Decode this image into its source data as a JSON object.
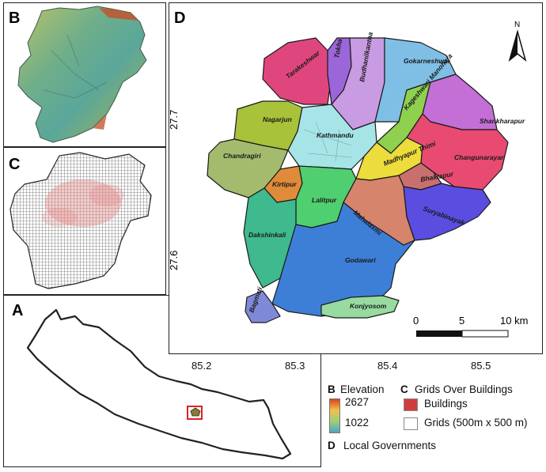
{
  "panels": {
    "b": "B",
    "c": "C",
    "a": "A",
    "d": "D"
  },
  "map_d": {
    "north": "N",
    "lon_ticks": [
      "85.2",
      "85.3",
      "85.4",
      "85.5"
    ],
    "lat_ticks": [
      "27.7",
      "27.6"
    ],
    "scalebar": {
      "zero": "0",
      "mid": "5",
      "end": "10 km"
    },
    "regions": [
      {
        "name": "Tarakeshwar",
        "color": "#e0467e"
      },
      {
        "name": "Tokha",
        "color": "#9a66d9"
      },
      {
        "name": "Budhanilkantha",
        "color": "#c99be2"
      },
      {
        "name": "Gokarneshwar",
        "color": "#7fbfe6"
      },
      {
        "name": "Kageshwari Manohara",
        "color": "#8fd14f"
      },
      {
        "name": "Shankharapur",
        "color": "#c46fd6"
      },
      {
        "name": "Nagarjun",
        "color": "#a8c23a"
      },
      {
        "name": "Kathmandu",
        "color": "#a6e4e8"
      },
      {
        "name": "Chandragiri",
        "color": "#a4bb6e"
      },
      {
        "name": "Madhyapur Thimi",
        "color": "#ecdc3c"
      },
      {
        "name": "Changunarayan",
        "color": "#e84a72"
      },
      {
        "name": "Bhaktapur",
        "color": "#c9706e"
      },
      {
        "name": "Kirtipur",
        "color": "#e08b3a"
      },
      {
        "name": "Lalitpur",
        "color": "#4fcf6f"
      },
      {
        "name": "Mahalaxmi",
        "color": "#d7846c"
      },
      {
        "name": "Suryabinayak",
        "color": "#5a4de0"
      },
      {
        "name": "Dakshinkali",
        "color": "#3fb98e"
      },
      {
        "name": "Godawari",
        "color": "#3d7fd6"
      },
      {
        "name": "Konjyosom",
        "color": "#98dba0"
      },
      {
        "name": "Bagmati",
        "color": "#7e8ad8"
      }
    ]
  },
  "legend": {
    "b_key": "B",
    "b_title": "Elevation",
    "elev_high": "2627",
    "elev_low": "1022",
    "c_key": "C",
    "c_title": "Grids Over Buildings",
    "buildings": "Buildings",
    "grids": "Grids (500m x 500 m)",
    "d_key": "D",
    "d_title": "Local Governments",
    "buildings_color": "#d23c3c"
  }
}
